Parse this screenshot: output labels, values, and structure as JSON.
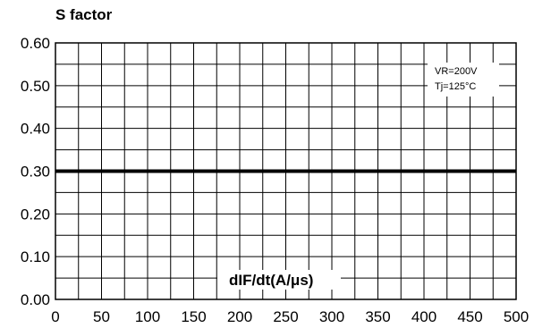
{
  "chart_data": {
    "type": "line",
    "title": "S factor",
    "xlabel": "dIF/dt(A/μs)",
    "ylabel": "",
    "xlim": [
      0,
      500
    ],
    "ylim": [
      0,
      0.6
    ],
    "x_ticks": [
      "0",
      "50",
      "100",
      "150",
      "200",
      "250",
      "300",
      "350",
      "400",
      "450",
      "500"
    ],
    "y_ticks": [
      "0.00",
      "0.10",
      "0.20",
      "0.30",
      "0.40",
      "0.50",
      "0.60"
    ],
    "grid": true,
    "conditions": [
      "VR=200V",
      "Tj=125°C"
    ],
    "series": [
      {
        "x": [
          0,
          500
        ],
        "y": [
          0.3,
          0.3
        ],
        "color": "#000000"
      }
    ]
  }
}
